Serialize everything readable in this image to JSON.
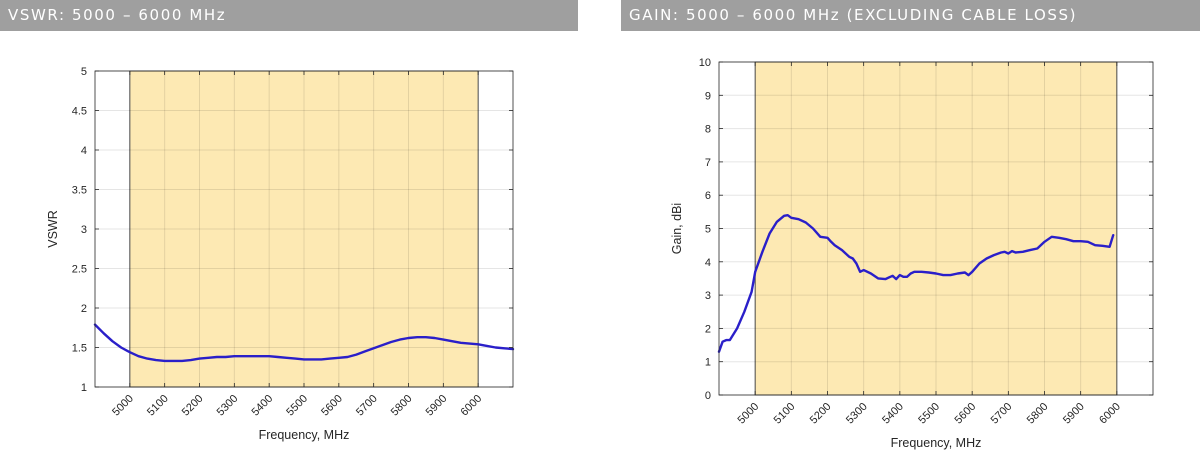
{
  "panels": [
    {
      "title": "VSWR: 5000 – 6000 MHz"
    },
    {
      "title": "GAIN: 5000 – 6000 MHz (EXCLUDING CABLE LOSS)"
    }
  ],
  "colors": {
    "band_fill": "#fde9b3",
    "line": "#2a1fc9",
    "header_bg": "#9f9f9f"
  },
  "chart_data": [
    {
      "type": "line",
      "title": "",
      "xlabel": "Frequency, MHz",
      "ylabel": "VSWR",
      "xlim": [
        4900,
        6100
      ],
      "ylim": [
        1,
        5
      ],
      "xticks": [
        5000,
        5100,
        5200,
        5300,
        5400,
        5500,
        5600,
        5700,
        5800,
        5900,
        6000
      ],
      "xtick_labels": [
        "5000",
        "5100",
        "5200",
        "5300",
        "5400",
        "5500",
        "5600",
        "5700",
        "5800",
        "5900",
        "6000"
      ],
      "yticks": [
        1,
        1.5,
        2,
        2.5,
        3,
        3.5,
        4,
        4.5,
        5
      ],
      "ytick_labels": [
        "1",
        "1.5",
        "2",
        "2.5",
        "3",
        "3.5",
        "4",
        "4.5",
        "5"
      ],
      "grid": true,
      "band": [
        5000,
        6000
      ],
      "series": [
        {
          "x": [
            4900,
            4925,
            4950,
            4975,
            5000,
            5025,
            5050,
            5075,
            5100,
            5125,
            5150,
            5175,
            5200,
            5225,
            5250,
            5275,
            5300,
            5325,
            5350,
            5375,
            5400,
            5425,
            5450,
            5475,
            5500,
            5525,
            5550,
            5575,
            5600,
            5625,
            5650,
            5675,
            5700,
            5725,
            5750,
            5775,
            5800,
            5825,
            5850,
            5875,
            5900,
            5925,
            5950,
            5975,
            6000,
            6025,
            6050,
            6075,
            6100
          ],
          "y": [
            1.79,
            1.68,
            1.58,
            1.5,
            1.44,
            1.39,
            1.36,
            1.34,
            1.33,
            1.33,
            1.33,
            1.34,
            1.36,
            1.37,
            1.38,
            1.38,
            1.39,
            1.39,
            1.39,
            1.39,
            1.39,
            1.38,
            1.37,
            1.36,
            1.35,
            1.35,
            1.35,
            1.36,
            1.37,
            1.38,
            1.41,
            1.45,
            1.49,
            1.53,
            1.57,
            1.6,
            1.62,
            1.63,
            1.63,
            1.62,
            1.6,
            1.58,
            1.56,
            1.55,
            1.54,
            1.52,
            1.5,
            1.49,
            1.48
          ]
        }
      ]
    },
    {
      "type": "line",
      "title": "",
      "xlabel": "Frequency, MHz",
      "ylabel": "Gain, dBi",
      "xlim": [
        4900,
        6100
      ],
      "ylim": [
        0,
        10
      ],
      "xticks": [
        5000,
        5100,
        5200,
        5300,
        5400,
        5500,
        5600,
        5700,
        5800,
        5900,
        6000
      ],
      "xtick_labels": [
        "5000",
        "5100",
        "5200",
        "5300",
        "5400",
        "5500",
        "5600",
        "5700",
        "5800",
        "5900",
        "6000"
      ],
      "yticks": [
        0,
        1,
        2,
        3,
        4,
        5,
        6,
        7,
        8,
        9,
        10
      ],
      "ytick_labels": [
        "0",
        "1",
        "2",
        "3",
        "4",
        "5",
        "6",
        "7",
        "8",
        "9",
        "10"
      ],
      "grid": true,
      "band": [
        5000,
        6000
      ],
      "series": [
        {
          "x": [
            4900,
            4910,
            4920,
            4930,
            4950,
            4970,
            4990,
            5000,
            5020,
            5040,
            5060,
            5080,
            5090,
            5100,
            5120,
            5140,
            5160,
            5180,
            5200,
            5210,
            5220,
            5240,
            5260,
            5270,
            5280,
            5290,
            5300,
            5320,
            5340,
            5360,
            5380,
            5390,
            5400,
            5410,
            5420,
            5430,
            5440,
            5460,
            5480,
            5500,
            5520,
            5540,
            5560,
            5580,
            5590,
            5600,
            5620,
            5640,
            5660,
            5680,
            5690,
            5700,
            5710,
            5720,
            5740,
            5760,
            5780,
            5800,
            5820,
            5840,
            5860,
            5880,
            5900,
            5920,
            5940,
            5960,
            5980,
            5990
          ],
          "y": [
            1.3,
            1.6,
            1.65,
            1.65,
            2.0,
            2.5,
            3.1,
            3.7,
            4.3,
            4.85,
            5.2,
            5.38,
            5.4,
            5.32,
            5.28,
            5.18,
            5.0,
            4.75,
            4.72,
            4.6,
            4.5,
            4.35,
            4.15,
            4.1,
            3.95,
            3.7,
            3.75,
            3.65,
            3.5,
            3.48,
            3.58,
            3.48,
            3.6,
            3.55,
            3.55,
            3.65,
            3.7,
            3.7,
            3.68,
            3.65,
            3.6,
            3.6,
            3.65,
            3.68,
            3.6,
            3.7,
            3.95,
            4.1,
            4.2,
            4.28,
            4.3,
            4.25,
            4.32,
            4.28,
            4.3,
            4.35,
            4.4,
            4.6,
            4.75,
            4.72,
            4.68,
            4.62,
            4.62,
            4.6,
            4.5,
            4.48,
            4.45,
            4.8
          ]
        }
      ]
    }
  ]
}
